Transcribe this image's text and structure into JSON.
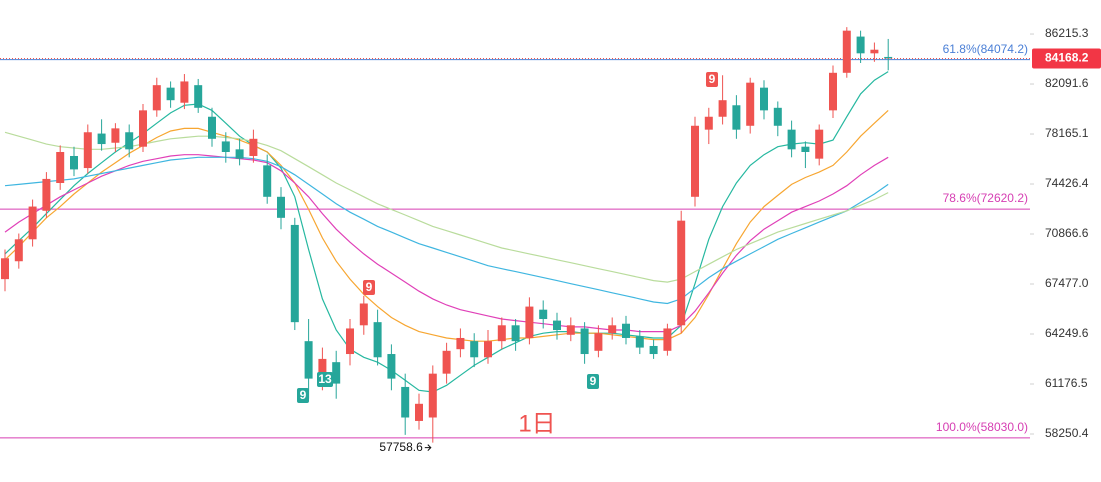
{
  "chart_data": {
    "type": "candlestick",
    "log_scale": true,
    "ylim": [
      56230,
      89140
    ],
    "yticks": [
      86215.3,
      82091.6,
      78165.1,
      74426.4,
      70866.6,
      {
        "value": 67477,
        "label": "67477.0"
      },
      64249.6,
      61176.5,
      58250.4
    ],
    "up_color": "#ef5350",
    "down_color": "#26a69a",
    "open": [
      67800,
      69000,
      70500,
      72500,
      74500,
      76500,
      75600,
      78200,
      77500,
      78300,
      77200,
      80000,
      81800,
      80600,
      82000,
      79500,
      77600,
      77000,
      76500,
      75800,
      73500,
      71500,
      63800,
      61600,
      62500,
      63000,
      64800,
      65000,
      63000,
      61000,
      59000,
      59200,
      61800,
      63300,
      63800,
      62800,
      63800,
      64800,
      64000,
      65800,
      65100,
      64200,
      64600,
      63200,
      64300,
      64900,
      64100,
      63500,
      63200,
      64800,
      73500,
      78500,
      79500,
      80400,
      78800,
      81800,
      80200,
      78500,
      77200,
      76300,
      80000,
      83000,
      86000,
      84600,
      84300
    ],
    "high": [
      69800,
      70900,
      73300,
      75300,
      77300,
      77200,
      78900,
      79300,
      79000,
      78900,
      80500,
      82600,
      82300,
      82900,
      82500,
      80200,
      78300,
      77800,
      78500,
      76600,
      74200,
      72000,
      65200,
      63400,
      63200,
      65200,
      66700,
      65800,
      63600,
      61800,
      60600,
      62300,
      63700,
      64600,
      64300,
      64500,
      65300,
      65200,
      66600,
      66400,
      65600,
      65300,
      65000,
      64800,
      65300,
      65400,
      64500,
      63900,
      64900,
      72500,
      79500,
      80200,
      82800,
      81200,
      82600,
      82400,
      80700,
      79200,
      77600,
      78900,
      83600,
      86800,
      86500,
      85500,
      85800
    ],
    "low": [
      67000,
      68500,
      70000,
      72000,
      74000,
      75000,
      75200,
      76900,
      76800,
      76400,
      76800,
      79500,
      80200,
      80100,
      79800,
      77200,
      76000,
      75800,
      76000,
      73000,
      71200,
      64500,
      60300,
      60800,
      60300,
      62300,
      64200,
      62300,
      60800,
      58200,
      58500,
      57758.6,
      61200,
      62800,
      62200,
      62400,
      63300,
      63200,
      63600,
      64600,
      63900,
      63800,
      62400,
      62800,
      63900,
      63600,
      63000,
      62700,
      62900,
      64300,
      72800,
      77400,
      78900,
      77800,
      78200,
      79300,
      78000,
      76400,
      75600,
      75800,
      79400,
      82600,
      83800,
      83900,
      83200
    ],
    "close": [
      69200,
      70500,
      72800,
      74800,
      76800,
      75500,
      78300,
      77400,
      78600,
      77000,
      80000,
      82000,
      80800,
      82300,
      80200,
      77800,
      76800,
      76300,
      77800,
      73500,
      72000,
      65000,
      61500,
      62700,
      61200,
      64600,
      66200,
      62800,
      61500,
      59200,
      60000,
      61800,
      63200,
      64000,
      62800,
      63800,
      64800,
      63800,
      66000,
      65200,
      64500,
      64800,
      63000,
      64300,
      64800,
      64000,
      63400,
      63000,
      64600,
      71800,
      78800,
      79500,
      80800,
      78500,
      82200,
      80000,
      78800,
      77000,
      76800,
      78500,
      83000,
      86500,
      84600,
      84900,
      84168.2
    ],
    "series": [
      {
        "color": "#26b8a0",
        "values": [
          69500,
          70400,
          71300,
          72300,
          73300,
          74300,
          75200,
          76000,
          76800,
          77500,
          78200,
          79000,
          79800,
          80400,
          80500,
          80000,
          79000,
          78000,
          77300,
          76800,
          75600,
          73500,
          69800,
          66500,
          64500,
          63300,
          62800,
          62500,
          62000,
          61400,
          60800,
          60700,
          61100,
          61700,
          62300,
          62800,
          63300,
          63700,
          64100,
          64300,
          64400,
          64400,
          64300,
          64300,
          64300,
          64200,
          64100,
          64000,
          64000,
          64800,
          67500,
          70500,
          72800,
          74500,
          75800,
          76600,
          77200,
          77400,
          77500,
          77400,
          77700,
          79500,
          81300,
          82400,
          83100
        ]
      },
      {
        "color": "#f7a631",
        "values": [
          69100,
          70000,
          71000,
          72000,
          72800,
          73700,
          74500,
          75300,
          76000,
          76700,
          77300,
          77900,
          78400,
          78600,
          78600,
          78300,
          78000,
          77700,
          77300,
          76800,
          75800,
          74500,
          72600,
          70600,
          69000,
          67800,
          66800,
          66000,
          65300,
          64800,
          64400,
          64200,
          64000,
          63900,
          63800,
          63800,
          63900,
          64000,
          64000,
          64100,
          64200,
          64300,
          64300,
          64300,
          64200,
          64100,
          64000,
          63900,
          63900,
          64300,
          65300,
          66800,
          68500,
          70200,
          71700,
          72800,
          73600,
          74400,
          74900,
          75300,
          75800,
          76800,
          78000,
          79000,
          80000
        ]
      },
      {
        "color": "#e040b8",
        "values": [
          71000,
          71700,
          72300,
          72900,
          73500,
          74000,
          74500,
          75000,
          75400,
          75800,
          76100,
          76300,
          76500,
          76600,
          76600,
          76500,
          76400,
          76300,
          76200,
          76000,
          75400,
          74500,
          73500,
          72300,
          71200,
          70300,
          69500,
          68800,
          68200,
          67600,
          67000,
          66500,
          66100,
          65800,
          65600,
          65400,
          65200,
          65100,
          65000,
          64900,
          64800,
          64700,
          64700,
          64600,
          64500,
          64500,
          64400,
          64400,
          64400,
          64800,
          65700,
          66900,
          68200,
          69400,
          70400,
          71200,
          71800,
          72400,
          72800,
          73200,
          73700,
          74300,
          75100,
          75800,
          76400
        ]
      },
      {
        "color": "#3fb6e0",
        "values": [
          74300,
          74400,
          74500,
          74600,
          74700,
          74800,
          75000,
          75200,
          75400,
          75600,
          75800,
          76000,
          76200,
          76300,
          76400,
          76400,
          76400,
          76400,
          76300,
          76100,
          75700,
          75100,
          74400,
          73700,
          73000,
          72400,
          71900,
          71400,
          71000,
          70600,
          70200,
          69900,
          69600,
          69300,
          69000,
          68700,
          68500,
          68300,
          68100,
          67900,
          67700,
          67500,
          67300,
          67100,
          66900,
          66700,
          66500,
          66300,
          66200,
          66500,
          67200,
          67900,
          68500,
          69000,
          69500,
          70000,
          70500,
          70900,
          71300,
          71700,
          72100,
          72500,
          73100,
          73700,
          74400
        ]
      },
      {
        "color": "#b9dc9c",
        "values": [
          78300,
          78000,
          77700,
          77400,
          77200,
          77100,
          77000,
          77000,
          77100,
          77200,
          77400,
          77600,
          77800,
          77900,
          78000,
          78000,
          77900,
          77800,
          77600,
          77300,
          76900,
          76300,
          75700,
          75100,
          74500,
          74000,
          73500,
          73000,
          72600,
          72200,
          71800,
          71400,
          71100,
          70800,
          70500,
          70200,
          69900,
          69700,
          69500,
          69300,
          69100,
          68900,
          68700,
          68500,
          68300,
          68100,
          67900,
          67700,
          67600,
          67800,
          68300,
          68800,
          69300,
          69800,
          70200,
          70600,
          71000,
          71300,
          71600,
          71900,
          72200,
          72500,
          72900,
          73300,
          73800
        ]
      }
    ],
    "levels": [
      {
        "value": 84074.2,
        "label": "61.8%(84074.2)",
        "color": "#4a7fd6"
      },
      {
        "value": 72620.2,
        "label": "78.6%(72620.2)",
        "color": "#d63fb3"
      },
      {
        "value": 58030.0,
        "label": "100.0%(58030.0)",
        "color": "#d63fb3"
      }
    ],
    "markers": [
      {
        "label": "9",
        "color": "#ef5350"
      },
      {
        "label": "9",
        "color": "#26a69a"
      },
      {
        "label": "13",
        "color": "#26a69a"
      },
      {
        "label": "9",
        "color": "#26a69a"
      },
      {
        "label": "9",
        "color": "#ef5350"
      }
    ],
    "interval_label": "1日"
  }
}
